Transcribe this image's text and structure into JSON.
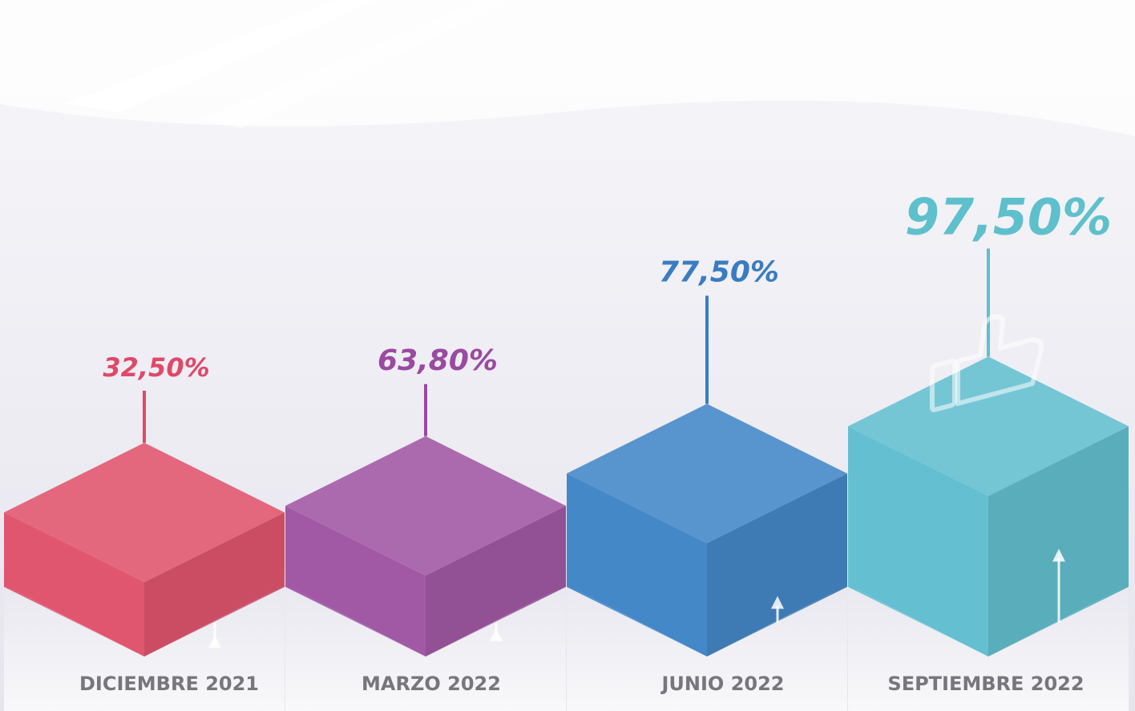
{
  "chart_data": {
    "type": "bar",
    "title": "",
    "xlabel": "",
    "ylabel": "",
    "categories": [
      "DICIEMBRE 2021",
      "MARZO 2022",
      "JUNIO 2022",
      "SEPTIEMBRE 2022"
    ],
    "values": [
      32.5,
      63.8,
      77.5,
      97.5
    ],
    "value_labels": [
      "32,50%",
      "63,80%",
      "77,50%",
      "97,50%"
    ],
    "unit": "%",
    "ylim": [
      0,
      100
    ],
    "grid": false,
    "legend": "none",
    "style": "3d-isometric-columns",
    "colors": {
      "bars": [
        "#e0566f",
        "#a259a5",
        "#4588c8",
        "#64c0d0"
      ],
      "labels": [
        "#e04868",
        "#9a4aa0",
        "#3a7cc2",
        "#5ec0cc"
      ],
      "category_text": "#77767d",
      "background": "#ecebf2"
    },
    "decorations": {
      "top_bar_icon": "thumbs-up-icon",
      "arrow_icon": "up-arrow-icon"
    }
  }
}
